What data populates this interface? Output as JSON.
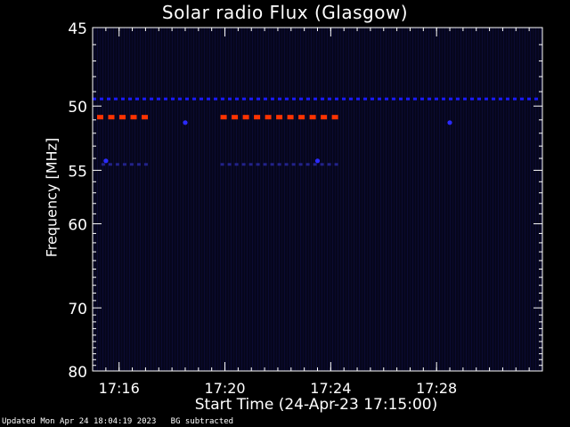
{
  "chart_data": {
    "type": "heatmap",
    "title": "Solar radio Flux (Glasgow)",
    "xlabel": "Start Time (24-Apr-23 17:15:00)",
    "ylabel": "Frequency [MHz]",
    "xlim": [
      "17:15:00",
      "17:32:00"
    ],
    "ylim": [
      45,
      80
    ],
    "x_ticks": [
      "17:16",
      "17:20",
      "17:24",
      "17:28"
    ],
    "y_ticks": [
      45,
      50,
      55,
      60,
      70,
      80
    ],
    "background_level": "low (background subtracted)",
    "features": [
      {
        "type": "band",
        "frequency_mhz": 49.5,
        "from": "17:15:00",
        "to": "17:32:00",
        "color": "#1a1aff",
        "intensity": "medium"
      },
      {
        "type": "band",
        "frequency_mhz": 50.8,
        "from": "17:15:10",
        "to": "17:17:10",
        "color": "#ff3300",
        "intensity": "high"
      },
      {
        "type": "band",
        "frequency_mhz": 50.8,
        "from": "17:19:50",
        "to": "17:24:30",
        "color": "#ff3300",
        "intensity": "high"
      },
      {
        "type": "band",
        "frequency_mhz": 54.5,
        "from": "17:15:20",
        "to": "17:17:10",
        "color": "#22228a",
        "intensity": "low"
      },
      {
        "type": "band",
        "frequency_mhz": 54.5,
        "from": "17:19:50",
        "to": "17:24:30",
        "color": "#22228a",
        "intensity": "low"
      },
      {
        "type": "point",
        "time": "17:18:30",
        "frequency_mhz": 51.2,
        "color": "#2a2aff"
      },
      {
        "type": "point",
        "time": "17:28:30",
        "frequency_mhz": 51.2,
        "color": "#2a2aff"
      },
      {
        "type": "point",
        "time": "17:15:30",
        "frequency_mhz": 54.2,
        "color": "#2a2aff"
      },
      {
        "type": "point",
        "time": "17:23:30",
        "frequency_mhz": 54.2,
        "color": "#2a2aff"
      }
    ]
  },
  "footer": {
    "updated": "Updated Mon Apr 24 18:04:19 2023   BG subtracted"
  }
}
